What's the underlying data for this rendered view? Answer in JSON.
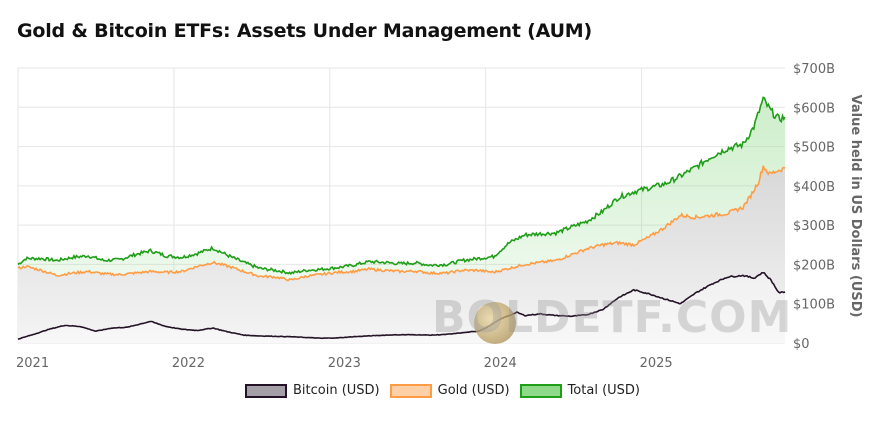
{
  "title": "Gold & Bitcoin ETFs: Assets Under Management (AUM)",
  "watermark": "BOLDETF.COM",
  "colors": {
    "bitcoin_line": "#241227",
    "bitcoin_fill": "#a5a0a8",
    "gold_line": "#ff9d47",
    "gold_fill": "#ffd0a6",
    "total_line": "#1f9e17",
    "total_fill": "#8fd98a",
    "grid": "#e6e6e6",
    "axis_text": "#666666"
  },
  "chart_data": {
    "type": "area",
    "title": "Gold & Bitcoin ETFs: Assets Under Management (AUM)",
    "ylabel": "Value held in US Dollars (USD)",
    "ylim": [
      0,
      700
    ],
    "y_ticks": [
      "$0",
      "$100B",
      "$200B",
      "$300B",
      "$400B",
      "$500B",
      "$600B",
      "$700B"
    ],
    "y_tick_values": [
      0,
      100,
      200,
      300,
      400,
      500,
      600,
      700
    ],
    "x_ticks": [
      "2021",
      "2022",
      "2023",
      "2024",
      "2025"
    ],
    "x_tick_values": [
      2021.0,
      2022.0,
      2023.0,
      2024.0,
      2025.0
    ],
    "xlim": [
      2021.0,
      2025.92
    ],
    "y_axis_side": "right",
    "grid": true,
    "legend_position": "bottom",
    "series": [
      {
        "name": "Bitcoin (USD)",
        "points": [
          [
            2021.0,
            10
          ],
          [
            2021.1,
            22
          ],
          [
            2021.2,
            35
          ],
          [
            2021.3,
            45
          ],
          [
            2021.4,
            42
          ],
          [
            2021.5,
            30
          ],
          [
            2021.6,
            38
          ],
          [
            2021.7,
            40
          ],
          [
            2021.8,
            50
          ],
          [
            2021.85,
            55
          ],
          [
            2021.95,
            42
          ],
          [
            2022.05,
            35
          ],
          [
            2022.15,
            32
          ],
          [
            2022.25,
            38
          ],
          [
            2022.35,
            28
          ],
          [
            2022.45,
            20
          ],
          [
            2022.55,
            18
          ],
          [
            2022.65,
            17
          ],
          [
            2022.75,
            16
          ],
          [
            2022.85,
            14
          ],
          [
            2022.95,
            12
          ],
          [
            2023.05,
            13
          ],
          [
            2023.15,
            16
          ],
          [
            2023.25,
            18
          ],
          [
            2023.35,
            20
          ],
          [
            2023.45,
            21
          ],
          [
            2023.55,
            21
          ],
          [
            2023.65,
            20
          ],
          [
            2023.75,
            22
          ],
          [
            2023.85,
            26
          ],
          [
            2023.95,
            30
          ],
          [
            2024.0,
            38
          ],
          [
            2024.1,
            62
          ],
          [
            2024.2,
            78
          ],
          [
            2024.25,
            70
          ],
          [
            2024.35,
            74
          ],
          [
            2024.45,
            70
          ],
          [
            2024.55,
            68
          ],
          [
            2024.65,
            72
          ],
          [
            2024.75,
            85
          ],
          [
            2024.85,
            115
          ],
          [
            2024.95,
            135
          ],
          [
            2025.05,
            125
          ],
          [
            2025.15,
            112
          ],
          [
            2025.25,
            100
          ],
          [
            2025.35,
            128
          ],
          [
            2025.45,
            150
          ],
          [
            2025.55,
            168
          ],
          [
            2025.65,
            172
          ],
          [
            2025.72,
            165
          ],
          [
            2025.78,
            180
          ],
          [
            2025.83,
            160
          ],
          [
            2025.88,
            128
          ],
          [
            2025.92,
            130
          ]
        ]
      },
      {
        "name": "Gold (USD)",
        "points": [
          [
            2021.0,
            190
          ],
          [
            2021.05,
            195
          ],
          [
            2021.15,
            185
          ],
          [
            2021.25,
            172
          ],
          [
            2021.35,
            178
          ],
          [
            2021.45,
            182
          ],
          [
            2021.55,
            176
          ],
          [
            2021.65,
            174
          ],
          [
            2021.75,
            178
          ],
          [
            2021.85,
            182
          ],
          [
            2021.95,
            180
          ],
          [
            2022.05,
            182
          ],
          [
            2022.15,
            195
          ],
          [
            2022.25,
            205
          ],
          [
            2022.35,
            195
          ],
          [
            2022.45,
            182
          ],
          [
            2022.55,
            170
          ],
          [
            2022.65,
            168
          ],
          [
            2022.75,
            160
          ],
          [
            2022.85,
            170
          ],
          [
            2022.95,
            175
          ],
          [
            2023.05,
            180
          ],
          [
            2023.15,
            182
          ],
          [
            2023.25,
            188
          ],
          [
            2023.35,
            185
          ],
          [
            2023.45,
            182
          ],
          [
            2023.55,
            183
          ],
          [
            2023.65,
            178
          ],
          [
            2023.75,
            178
          ],
          [
            2023.85,
            185
          ],
          [
            2023.95,
            185
          ],
          [
            2024.05,
            180
          ],
          [
            2024.15,
            190
          ],
          [
            2024.25,
            200
          ],
          [
            2024.35,
            205
          ],
          [
            2024.45,
            210
          ],
          [
            2024.55,
            225
          ],
          [
            2024.65,
            240
          ],
          [
            2024.75,
            250
          ],
          [
            2024.85,
            255
          ],
          [
            2024.95,
            250
          ],
          [
            2025.05,
            270
          ],
          [
            2025.15,
            295
          ],
          [
            2025.25,
            325
          ],
          [
            2025.35,
            320
          ],
          [
            2025.45,
            325
          ],
          [
            2025.55,
            330
          ],
          [
            2025.65,
            345
          ],
          [
            2025.7,
            375
          ],
          [
            2025.75,
            410
          ],
          [
            2025.78,
            450
          ],
          [
            2025.82,
            430
          ],
          [
            2025.88,
            440
          ],
          [
            2025.92,
            445
          ]
        ]
      },
      {
        "name": "Total (USD)",
        "points": [
          [
            2021.0,
            200
          ],
          [
            2021.05,
            215
          ],
          [
            2021.15,
            215
          ],
          [
            2021.25,
            210
          ],
          [
            2021.35,
            218
          ],
          [
            2021.45,
            222
          ],
          [
            2021.55,
            210
          ],
          [
            2021.65,
            212
          ],
          [
            2021.75,
            225
          ],
          [
            2021.85,
            235
          ],
          [
            2021.95,
            222
          ],
          [
            2022.05,
            218
          ],
          [
            2022.15,
            228
          ],
          [
            2022.25,
            242
          ],
          [
            2022.35,
            222
          ],
          [
            2022.45,
            205
          ],
          [
            2022.55,
            190
          ],
          [
            2022.65,
            185
          ],
          [
            2022.75,
            178
          ],
          [
            2022.85,
            185
          ],
          [
            2022.95,
            188
          ],
          [
            2023.05,
            192
          ],
          [
            2023.15,
            198
          ],
          [
            2023.25,
            207
          ],
          [
            2023.35,
            205
          ],
          [
            2023.45,
            202
          ],
          [
            2023.55,
            204
          ],
          [
            2023.65,
            198
          ],
          [
            2023.75,
            200
          ],
          [
            2023.85,
            210
          ],
          [
            2023.95,
            215
          ],
          [
            2024.05,
            220
          ],
          [
            2024.15,
            255
          ],
          [
            2024.25,
            275
          ],
          [
            2024.35,
            278
          ],
          [
            2024.45,
            280
          ],
          [
            2024.55,
            295
          ],
          [
            2024.65,
            310
          ],
          [
            2024.75,
            335
          ],
          [
            2024.85,
            370
          ],
          [
            2024.95,
            385
          ],
          [
            2025.05,
            395
          ],
          [
            2025.15,
            405
          ],
          [
            2025.25,
            425
          ],
          [
            2025.35,
            448
          ],
          [
            2025.45,
            475
          ],
          [
            2025.55,
            495
          ],
          [
            2025.65,
            505
          ],
          [
            2025.72,
            550
          ],
          [
            2025.78,
            620
          ],
          [
            2025.83,
            590
          ],
          [
            2025.88,
            570
          ],
          [
            2025.92,
            575
          ]
        ]
      }
    ]
  },
  "legend": [
    {
      "label": "Bitcoin (USD)"
    },
    {
      "label": "Gold (USD)"
    },
    {
      "label": "Total (USD)"
    }
  ]
}
